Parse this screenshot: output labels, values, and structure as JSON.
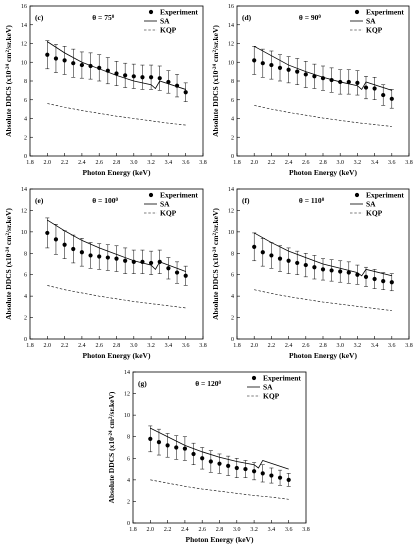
{
  "figure": {
    "xlabel": "Photon Energy (keV)",
    "ylabel": "Absolute DDCS (x10",
    "ylabel_exp": "-24",
    "ylabel_mid": " cm",
    "ylabel_exp2": "2",
    "ylabel_end": "/sr.keV)",
    "legend": [
      "Experiment",
      "SA",
      "KQP"
    ],
    "theta_prefix": "θ = ",
    "theta_unit": "0"
  },
  "chart_data": [
    {
      "type": "line",
      "panel": "(c)",
      "theta": "75",
      "xlim": [
        1.8,
        3.8
      ],
      "ylim": [
        0,
        16
      ],
      "xticks": [
        1.8,
        2.0,
        2.2,
        2.4,
        2.6,
        2.8,
        3.0,
        3.2,
        3.4,
        3.6,
        3.8
      ],
      "yticks": [
        0,
        2,
        4,
        6,
        8,
        10,
        12,
        14,
        16
      ],
      "grid": false,
      "legend_position": "top-right",
      "experiment": {
        "x": [
          2.0,
          2.1,
          2.2,
          2.3,
          2.4,
          2.5,
          2.6,
          2.7,
          2.8,
          2.9,
          3.0,
          3.1,
          3.2,
          3.3,
          3.4,
          3.5,
          3.6
        ],
        "y": [
          10.8,
          10.4,
          10.2,
          9.9,
          9.7,
          9.6,
          9.4,
          9.1,
          8.8,
          8.6,
          8.5,
          8.4,
          8.4,
          8.3,
          7.9,
          7.5,
          6.8
        ],
        "err": [
          1.5,
          1.5,
          1.5,
          1.5,
          1.4,
          1.4,
          1.4,
          1.4,
          1.3,
          1.3,
          1.3,
          1.3,
          1.3,
          1.3,
          1.2,
          1.2,
          1.0
        ]
      },
      "SA": {
        "x": [
          2.0,
          2.2,
          2.4,
          2.6,
          2.8,
          3.0,
          3.2,
          3.25,
          3.3,
          3.6
        ],
        "y": [
          12.2,
          11.0,
          10.0,
          9.3,
          8.6,
          8.0,
          7.6,
          7.2,
          8.0,
          7.1
        ]
      },
      "KQP": {
        "x": [
          2.0,
          2.2,
          2.4,
          2.6,
          2.8,
          3.0,
          3.2,
          3.4,
          3.6
        ],
        "y": [
          5.6,
          5.2,
          4.85,
          4.55,
          4.25,
          4.0,
          3.75,
          3.5,
          3.3
        ]
      }
    },
    {
      "type": "line",
      "panel": "(d)",
      "theta": "90",
      "xlim": [
        1.8,
        3.8
      ],
      "ylim": [
        0,
        16
      ],
      "xticks": [
        1.8,
        2.0,
        2.2,
        2.4,
        2.6,
        2.8,
        3.0,
        3.2,
        3.4,
        3.6,
        3.8
      ],
      "yticks": [
        0,
        2,
        4,
        6,
        8,
        10,
        12,
        14,
        16
      ],
      "grid": false,
      "legend_position": "top-right",
      "experiment": {
        "x": [
          2.0,
          2.1,
          2.2,
          2.3,
          2.4,
          2.5,
          2.6,
          2.7,
          2.8,
          2.9,
          3.0,
          3.1,
          3.2,
          3.3,
          3.4,
          3.5,
          3.6
        ],
        "y": [
          10.2,
          9.9,
          9.7,
          9.4,
          9.2,
          9.0,
          8.7,
          8.5,
          8.3,
          8.1,
          7.9,
          7.9,
          7.8,
          7.3,
          7.2,
          6.5,
          6.1
        ],
        "err": [
          1.5,
          1.5,
          1.5,
          1.4,
          1.4,
          1.4,
          1.4,
          1.3,
          1.3,
          1.3,
          1.3,
          1.3,
          1.3,
          1.2,
          1.2,
          1.1,
          1.0
        ]
      },
      "SA": {
        "x": [
          2.0,
          2.2,
          2.4,
          2.6,
          2.8,
          3.0,
          3.2,
          3.25,
          3.3,
          3.6
        ],
        "y": [
          11.7,
          10.7,
          9.7,
          9.0,
          8.4,
          7.9,
          7.5,
          7.1,
          7.9,
          7.0
        ]
      },
      "KQP": {
        "x": [
          2.0,
          2.2,
          2.4,
          2.6,
          2.8,
          3.0,
          3.2,
          3.4,
          3.6
        ],
        "y": [
          5.4,
          5.0,
          4.65,
          4.35,
          4.05,
          3.8,
          3.55,
          3.35,
          3.15
        ]
      }
    },
    {
      "type": "line",
      "panel": "(e)",
      "theta": "100",
      "xlim": [
        1.8,
        3.8
      ],
      "ylim": [
        0,
        14
      ],
      "xticks": [
        1.8,
        2.0,
        2.2,
        2.4,
        2.6,
        2.8,
        3.0,
        3.2,
        3.4,
        3.6,
        3.8
      ],
      "yticks": [
        0,
        2,
        4,
        6,
        8,
        10,
        12,
        14
      ],
      "grid": false,
      "legend_position": "top-right",
      "experiment": {
        "x": [
          2.0,
          2.1,
          2.2,
          2.3,
          2.4,
          2.5,
          2.6,
          2.7,
          2.8,
          2.9,
          3.0,
          3.1,
          3.2,
          3.3,
          3.4,
          3.5,
          3.6
        ],
        "y": [
          9.9,
          9.3,
          8.8,
          8.4,
          8.1,
          7.8,
          7.7,
          7.6,
          7.5,
          7.3,
          7.2,
          7.2,
          7.1,
          7.2,
          6.6,
          6.2,
          5.9
        ],
        "err": [
          1.4,
          1.4,
          1.3,
          1.3,
          1.3,
          1.2,
          1.2,
          1.2,
          1.2,
          1.2,
          1.1,
          1.1,
          1.1,
          1.1,
          1.0,
          1.0,
          0.9
        ]
      },
      "SA": {
        "x": [
          2.0,
          2.2,
          2.4,
          2.6,
          2.8,
          3.0,
          3.2,
          3.25,
          3.3,
          3.6
        ],
        "y": [
          11.1,
          10.1,
          9.2,
          8.5,
          7.9,
          7.3,
          6.9,
          6.5,
          7.2,
          6.3
        ]
      },
      "KQP": {
        "x": [
          2.0,
          2.2,
          2.4,
          2.6,
          2.8,
          3.0,
          3.2,
          3.4,
          3.6
        ],
        "y": [
          5.0,
          4.6,
          4.3,
          4.0,
          3.75,
          3.5,
          3.3,
          3.1,
          2.9
        ]
      }
    },
    {
      "type": "line",
      "panel": "(f)",
      "theta": "110",
      "xlim": [
        1.8,
        3.8
      ],
      "ylim": [
        0,
        14
      ],
      "xticks": [
        1.8,
        2.0,
        2.2,
        2.4,
        2.6,
        2.8,
        3.0,
        3.2,
        3.4,
        3.6,
        3.8
      ],
      "yticks": [
        0,
        2,
        4,
        6,
        8,
        10,
        12,
        14
      ],
      "grid": false,
      "legend_position": "top-right",
      "experiment": {
        "x": [
          2.0,
          2.1,
          2.2,
          2.3,
          2.4,
          2.5,
          2.6,
          2.7,
          2.8,
          2.9,
          3.0,
          3.1,
          3.2,
          3.3,
          3.4,
          3.5,
          3.6
        ],
        "y": [
          8.6,
          8.1,
          7.8,
          7.5,
          7.3,
          7.1,
          6.9,
          6.7,
          6.5,
          6.4,
          6.3,
          6.2,
          6.0,
          5.8,
          5.6,
          5.4,
          5.3
        ],
        "err": [
          1.3,
          1.3,
          1.2,
          1.2,
          1.2,
          1.1,
          1.1,
          1.1,
          1.0,
          1.0,
          1.0,
          1.0,
          0.9,
          0.9,
          0.9,
          0.8,
          0.8
        ]
      },
      "SA": {
        "x": [
          2.0,
          2.2,
          2.4,
          2.6,
          2.8,
          3.0,
          3.2,
          3.25,
          3.3,
          3.6
        ],
        "y": [
          9.9,
          9.0,
          8.2,
          7.6,
          7.0,
          6.6,
          6.2,
          5.9,
          6.5,
          5.9
        ]
      },
      "KQP": {
        "x": [
          2.0,
          2.2,
          2.4,
          2.6,
          2.8,
          3.0,
          3.2,
          3.4,
          3.6
        ],
        "y": [
          4.6,
          4.25,
          3.95,
          3.7,
          3.45,
          3.25,
          3.05,
          2.85,
          2.65
        ]
      }
    },
    {
      "type": "line",
      "panel": "(g)",
      "theta": "120",
      "xlim": [
        1.8,
        3.8
      ],
      "ylim": [
        0,
        14
      ],
      "xticks": [
        1.8,
        2.0,
        2.2,
        2.4,
        2.6,
        2.8,
        3.0,
        3.2,
        3.4,
        3.6,
        3.8
      ],
      "yticks": [
        0,
        2,
        4,
        6,
        8,
        10,
        12,
        14
      ],
      "grid": false,
      "legend_position": "top-right",
      "experiment": {
        "x": [
          2.0,
          2.1,
          2.2,
          2.3,
          2.4,
          2.5,
          2.6,
          2.7,
          2.8,
          2.9,
          3.0,
          3.1,
          3.2,
          3.3,
          3.4,
          3.5,
          3.6
        ],
        "y": [
          7.8,
          7.5,
          7.2,
          7.0,
          6.9,
          6.4,
          6.0,
          5.7,
          5.5,
          5.3,
          5.1,
          5.0,
          4.8,
          4.6,
          4.4,
          4.2,
          4.0
        ],
        "err": [
          1.2,
          1.2,
          1.1,
          1.1,
          1.1,
          1.0,
          1.0,
          1.0,
          0.9,
          0.9,
          0.9,
          0.8,
          0.8,
          0.8,
          0.7,
          0.7,
          0.6
        ]
      },
      "SA": {
        "x": [
          2.0,
          2.2,
          2.4,
          2.6,
          2.8,
          3.0,
          3.2,
          3.25,
          3.3,
          3.6
        ],
        "y": [
          8.8,
          8.0,
          7.2,
          6.6,
          6.1,
          5.7,
          5.4,
          5.1,
          5.8,
          5.0
        ]
      },
      "KQP": {
        "x": [
          2.0,
          2.2,
          2.4,
          2.6,
          2.8,
          3.0,
          3.2,
          3.4,
          3.6
        ],
        "y": [
          4.0,
          3.7,
          3.4,
          3.15,
          2.95,
          2.75,
          2.55,
          2.4,
          2.2
        ]
      }
    }
  ]
}
